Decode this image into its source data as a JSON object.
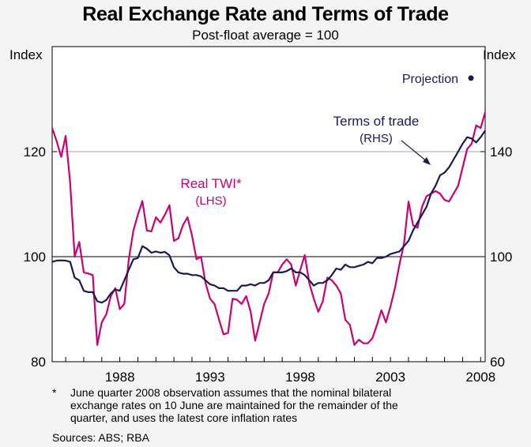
{
  "chart_data": {
    "type": "line",
    "title": "Real Exchange Rate and Terms of Trade",
    "subtitle": "Post-float average = 100",
    "left_axis": {
      "label": "Index",
      "ticks": [
        80,
        100,
        120
      ],
      "range": [
        80,
        140
      ]
    },
    "right_axis": {
      "label": "Index",
      "ticks": [
        60,
        100,
        140
      ],
      "range": [
        60,
        180
      ]
    },
    "x_axis": {
      "ticks": [
        "1988",
        "1993",
        "1998",
        "2003",
        "2008"
      ],
      "range": [
        1984.25,
        2008.25
      ]
    },
    "gridlines": [
      100,
      120
    ],
    "series": [
      {
        "name": "Real TWI*",
        "label_line2": "(LHS)",
        "axis": "left",
        "color": "#cc0077",
        "points": [
          [
            1984.25,
            124.5
          ],
          [
            1984.5,
            122.0
          ],
          [
            1984.75,
            119.0
          ],
          [
            1985.0,
            123.0
          ],
          [
            1985.25,
            114.0
          ],
          [
            1985.5,
            100.0
          ],
          [
            1985.75,
            102.8
          ],
          [
            1986.0,
            97.0
          ],
          [
            1986.25,
            96.8
          ],
          [
            1986.5,
            96.5
          ],
          [
            1986.75,
            83.2
          ],
          [
            1987.0,
            87.5
          ],
          [
            1987.25,
            89.0
          ],
          [
            1987.5,
            92.5
          ],
          [
            1987.75,
            94.0
          ],
          [
            1988.0,
            90.0
          ],
          [
            1988.25,
            91.0
          ],
          [
            1988.5,
            99.5
          ],
          [
            1988.75,
            105.0
          ],
          [
            1989.0,
            108.0
          ],
          [
            1989.25,
            110.6
          ],
          [
            1989.5,
            105.0
          ],
          [
            1989.75,
            104.8
          ],
          [
            1990.0,
            107.5
          ],
          [
            1990.25,
            106.5
          ],
          [
            1990.5,
            108.0
          ],
          [
            1990.75,
            109.8
          ],
          [
            1991.0,
            103.0
          ],
          [
            1991.25,
            103.5
          ],
          [
            1991.5,
            106.0
          ],
          [
            1991.75,
            107.5
          ],
          [
            1992.0,
            104.0
          ],
          [
            1992.25,
            99.5
          ],
          [
            1992.5,
            100.0
          ],
          [
            1992.75,
            95.0
          ],
          [
            1993.0,
            92.0
          ],
          [
            1993.25,
            91.0
          ],
          [
            1993.5,
            88.0
          ],
          [
            1993.75,
            85.2
          ],
          [
            1994.0,
            85.5
          ],
          [
            1994.25,
            92.0
          ],
          [
            1994.5,
            91.8
          ],
          [
            1994.75,
            91.0
          ],
          [
            1995.0,
            92.5
          ],
          [
            1995.25,
            89.5
          ],
          [
            1995.5,
            84.0
          ],
          [
            1995.75,
            87.5
          ],
          [
            1996.0,
            91.0
          ],
          [
            1996.25,
            93.0
          ],
          [
            1996.5,
            97.0
          ],
          [
            1996.75,
            97.0
          ],
          [
            1997.0,
            98.5
          ],
          [
            1997.25,
            99.5
          ],
          [
            1997.5,
            98.5
          ],
          [
            1997.75,
            94.5
          ],
          [
            1998.0,
            97.5
          ],
          [
            1998.25,
            100.3
          ],
          [
            1998.5,
            95.0
          ],
          [
            1998.75,
            92.0
          ],
          [
            1999.0,
            89.5
          ],
          [
            1999.25,
            91.5
          ],
          [
            1999.5,
            96.0
          ],
          [
            1999.75,
            95.5
          ],
          [
            2000.0,
            94.5
          ],
          [
            2000.25,
            93.0
          ],
          [
            2000.5,
            88.0
          ],
          [
            2000.75,
            87.0
          ],
          [
            2001.0,
            83.2
          ],
          [
            2001.25,
            84.2
          ],
          [
            2001.5,
            83.5
          ],
          [
            2001.75,
            83.5
          ],
          [
            2002.0,
            84.5
          ],
          [
            2002.25,
            87.0
          ],
          [
            2002.5,
            89.8
          ],
          [
            2002.75,
            87.5
          ],
          [
            2003.0,
            90.5
          ],
          [
            2003.25,
            94.0
          ],
          [
            2003.5,
            98.5
          ],
          [
            2003.75,
            102.5
          ],
          [
            2004.0,
            110.5
          ],
          [
            2004.25,
            106.0
          ],
          [
            2004.5,
            105.5
          ],
          [
            2004.75,
            109.5
          ],
          [
            2005.0,
            111.5
          ],
          [
            2005.25,
            112.0
          ],
          [
            2005.5,
            112.5
          ],
          [
            2005.75,
            112.0
          ],
          [
            2006.0,
            110.8
          ],
          [
            2006.25,
            110.5
          ],
          [
            2006.5,
            112.0
          ],
          [
            2006.75,
            113.5
          ],
          [
            2007.0,
            117.0
          ],
          [
            2007.25,
            120.5
          ],
          [
            2007.5,
            121.5
          ],
          [
            2007.75,
            125.0
          ],
          [
            2008.0,
            124.5
          ],
          [
            2008.25,
            127.5
          ]
        ]
      },
      {
        "name": "Terms of trade",
        "label_line2": "(RHS)",
        "axis": "right",
        "color": "#1a1a5a",
        "points": [
          [
            1984.25,
            98.0
          ],
          [
            1984.5,
            98.5
          ],
          [
            1984.75,
            98.6
          ],
          [
            1985.0,
            98.5
          ],
          [
            1985.25,
            98.0
          ],
          [
            1985.5,
            92.0
          ],
          [
            1985.75,
            91.0
          ],
          [
            1986.0,
            87.0
          ],
          [
            1986.25,
            86.5
          ],
          [
            1986.5,
            86.5
          ],
          [
            1986.75,
            83.0
          ],
          [
            1987.0,
            82.5
          ],
          [
            1987.25,
            83.5
          ],
          [
            1987.5,
            86.0
          ],
          [
            1987.75,
            87.5
          ],
          [
            1988.0,
            87.0
          ],
          [
            1988.25,
            91.0
          ],
          [
            1988.5,
            95.0
          ],
          [
            1988.75,
            99.0
          ],
          [
            1989.0,
            99.5
          ],
          [
            1989.25,
            104.0
          ],
          [
            1989.5,
            103.0
          ],
          [
            1989.75,
            101.5
          ],
          [
            1990.0,
            102.0
          ],
          [
            1990.25,
            101.5
          ],
          [
            1990.5,
            101.8
          ],
          [
            1990.75,
            100.5
          ],
          [
            1991.0,
            96.0
          ],
          [
            1991.25,
            94.0
          ],
          [
            1991.5,
            93.5
          ],
          [
            1991.75,
            93.5
          ],
          [
            1992.0,
            93.0
          ],
          [
            1992.25,
            93.0
          ],
          [
            1992.5,
            92.5
          ],
          [
            1992.75,
            91.0
          ],
          [
            1993.0,
            89.5
          ],
          [
            1993.25,
            89.0
          ],
          [
            1993.5,
            88.0
          ],
          [
            1993.75,
            88.0
          ],
          [
            1994.0,
            87.0
          ],
          [
            1994.25,
            87.0
          ],
          [
            1994.5,
            87.0
          ],
          [
            1994.75,
            89.0
          ],
          [
            1995.0,
            89.0
          ],
          [
            1995.25,
            89.5
          ],
          [
            1995.5,
            89.0
          ],
          [
            1995.75,
            90.0
          ],
          [
            1996.0,
            90.0
          ],
          [
            1996.25,
            91.0
          ],
          [
            1996.5,
            94.0
          ],
          [
            1996.75,
            94.0
          ],
          [
            1997.0,
            94.0
          ],
          [
            1997.25,
            94.5
          ],
          [
            1997.5,
            95.5
          ],
          [
            1997.75,
            94.0
          ],
          [
            1998.0,
            94.0
          ],
          [
            1998.25,
            93.0
          ],
          [
            1998.5,
            91.0
          ],
          [
            1998.75,
            89.0
          ],
          [
            1999.0,
            90.0
          ],
          [
            1999.25,
            90.0
          ],
          [
            1999.5,
            91.0
          ],
          [
            1999.75,
            93.0
          ],
          [
            2000.0,
            95.5
          ],
          [
            2000.25,
            95.0
          ],
          [
            2000.5,
            97.0
          ],
          [
            2000.75,
            96.0
          ],
          [
            2001.0,
            96.0
          ],
          [
            2001.25,
            96.5
          ],
          [
            2001.5,
            97.0
          ],
          [
            2001.75,
            98.0
          ],
          [
            2002.0,
            97.5
          ],
          [
            2002.25,
            99.5
          ],
          [
            2002.5,
            99.5
          ],
          [
            2002.75,
            100.0
          ],
          [
            2003.0,
            101.0
          ],
          [
            2003.25,
            101.5
          ],
          [
            2003.5,
            102.0
          ],
          [
            2003.75,
            104.0
          ],
          [
            2004.0,
            106.0
          ],
          [
            2004.25,
            110.0
          ],
          [
            2004.5,
            113.0
          ],
          [
            2004.75,
            116.0
          ],
          [
            2005.0,
            119.0
          ],
          [
            2005.25,
            124.0
          ],
          [
            2005.5,
            127.0
          ],
          [
            2005.75,
            131.0
          ],
          [
            2006.0,
            132.0
          ],
          [
            2006.25,
            134.0
          ],
          [
            2006.5,
            137.0
          ],
          [
            2006.75,
            140.0
          ],
          [
            2007.0,
            143.0
          ],
          [
            2007.25,
            145.5
          ],
          [
            2007.5,
            145.0
          ],
          [
            2007.75,
            143.5
          ],
          [
            2008.0,
            145.5
          ],
          [
            2008.25,
            148.0
          ]
        ]
      }
    ],
    "projection": {
      "label": "Projection",
      "value": 168,
      "axis": "right",
      "color": "#1a1a5a"
    }
  },
  "footnote": {
    "marker": "*",
    "lines": [
      "June quarter 2008 observation assumes that the nominal bilateral",
      "exchange rates on 10 June are maintained for the remainder of the",
      "quarter, and uses the latest core inflation rates"
    ]
  },
  "sources": "Sources: ABS; RBA"
}
